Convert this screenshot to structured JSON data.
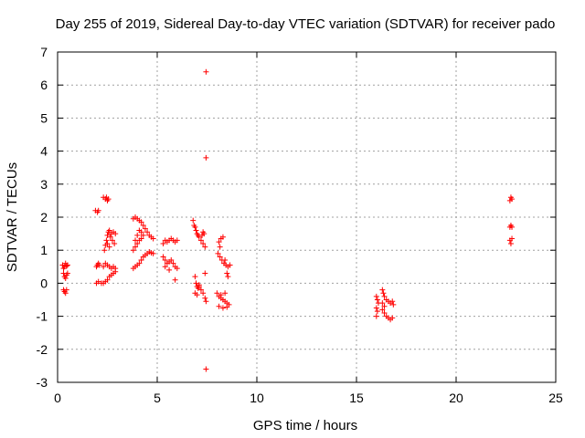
{
  "chart_data": {
    "type": "scatter",
    "title": "Day 255 of 2019, Sidereal Day-to-day VTEC variation (SDTVAR) for receiver pado",
    "xlabel": "GPS time / hours",
    "ylabel": "SDTVAR / TECUs",
    "xlim": [
      0,
      25
    ],
    "ylim": [
      -3,
      7
    ],
    "grid": true,
    "x_ticks": [
      0,
      5,
      10,
      15,
      20,
      25
    ],
    "x_tick_labels": [
      "0",
      "5",
      "10",
      "15",
      "20",
      "25"
    ],
    "y_ticks": [
      -3,
      -2,
      -1,
      0,
      1,
      2,
      3,
      4,
      5,
      6,
      7
    ],
    "y_tick_labels": [
      "-3",
      "-2",
      "-1",
      "0",
      "1",
      "2",
      "3",
      "4",
      "5",
      "6",
      "7"
    ],
    "marker": "+",
    "series_color": "#ff0000",
    "series": [
      {
        "name": "SDTVAR",
        "points": [
          [
            0.25,
            0.55
          ],
          [
            0.3,
            0.45
          ],
          [
            0.35,
            0.5
          ],
          [
            0.4,
            0.6
          ],
          [
            0.45,
            0.52
          ],
          [
            0.5,
            0.55
          ],
          [
            0.3,
            0.3
          ],
          [
            0.35,
            0.2
          ],
          [
            0.4,
            0.15
          ],
          [
            0.45,
            0.25
          ],
          [
            0.5,
            0.3
          ],
          [
            0.3,
            -0.2
          ],
          [
            0.35,
            -0.25
          ],
          [
            0.4,
            -0.3
          ],
          [
            0.45,
            -0.2
          ],
          [
            1.9,
            2.2
          ],
          [
            2.0,
            2.15
          ],
          [
            2.05,
            2.2
          ],
          [
            1.95,
            0.5
          ],
          [
            2.0,
            0.55
          ],
          [
            2.05,
            0.6
          ],
          [
            2.1,
            0.55
          ],
          [
            1.95,
            0.0
          ],
          [
            2.05,
            0.05
          ],
          [
            2.2,
            0.0
          ],
          [
            2.3,
            2.6
          ],
          [
            2.4,
            2.55
          ],
          [
            2.5,
            2.5
          ],
          [
            2.55,
            2.55
          ],
          [
            2.45,
            2.6
          ],
          [
            2.35,
            1.0
          ],
          [
            2.4,
            1.15
          ],
          [
            2.45,
            1.3
          ],
          [
            2.5,
            1.45
          ],
          [
            2.55,
            1.55
          ],
          [
            2.6,
            1.6
          ],
          [
            2.7,
            1.5
          ],
          [
            2.8,
            1.55
          ],
          [
            2.9,
            1.5
          ],
          [
            2.65,
            1.4
          ],
          [
            2.75,
            1.3
          ],
          [
            2.85,
            1.2
          ],
          [
            2.6,
            1.1
          ],
          [
            2.5,
            1.2
          ],
          [
            2.3,
            0.5
          ],
          [
            2.4,
            0.6
          ],
          [
            2.5,
            0.55
          ],
          [
            2.6,
            0.5
          ],
          [
            2.7,
            0.45
          ],
          [
            2.8,
            0.5
          ],
          [
            2.9,
            0.45
          ],
          [
            2.3,
            0.0
          ],
          [
            2.4,
            0.05
          ],
          [
            2.5,
            0.1
          ],
          [
            2.6,
            0.2
          ],
          [
            2.7,
            0.25
          ],
          [
            2.8,
            0.3
          ],
          [
            2.9,
            0.35
          ],
          [
            3.8,
            1.95
          ],
          [
            3.9,
            2.0
          ],
          [
            4.0,
            1.95
          ],
          [
            4.1,
            1.9
          ],
          [
            4.2,
            1.85
          ],
          [
            4.3,
            1.75
          ],
          [
            4.4,
            1.65
          ],
          [
            4.5,
            1.55
          ],
          [
            4.6,
            1.45
          ],
          [
            4.7,
            1.4
          ],
          [
            4.8,
            1.35
          ],
          [
            4.2,
            1.55
          ],
          [
            4.3,
            1.45
          ],
          [
            4.1,
            1.6
          ],
          [
            3.8,
            1.0
          ],
          [
            3.9,
            1.1
          ],
          [
            4.0,
            1.2
          ],
          [
            4.1,
            1.3
          ],
          [
            4.2,
            1.35
          ],
          [
            4.0,
            1.45
          ],
          [
            3.9,
            1.3
          ],
          [
            3.8,
            0.45
          ],
          [
            3.9,
            0.5
          ],
          [
            4.0,
            0.55
          ],
          [
            4.1,
            0.6
          ],
          [
            4.2,
            0.7
          ],
          [
            4.3,
            0.8
          ],
          [
            4.4,
            0.85
          ],
          [
            4.5,
            0.9
          ],
          [
            4.6,
            0.95
          ],
          [
            4.7,
            0.92
          ],
          [
            4.8,
            0.9
          ],
          [
            5.3,
            1.2
          ],
          [
            5.4,
            1.3
          ],
          [
            5.5,
            1.25
          ],
          [
            5.6,
            1.3
          ],
          [
            5.7,
            1.35
          ],
          [
            5.8,
            1.3
          ],
          [
            5.9,
            1.25
          ],
          [
            6.0,
            1.3
          ],
          [
            5.3,
            0.8
          ],
          [
            5.4,
            0.7
          ],
          [
            5.5,
            0.6
          ],
          [
            5.6,
            0.65
          ],
          [
            5.7,
            0.7
          ],
          [
            5.8,
            0.6
          ],
          [
            5.9,
            0.5
          ],
          [
            6.0,
            0.45
          ],
          [
            5.4,
            0.5
          ],
          [
            5.6,
            0.4
          ],
          [
            5.9,
            0.1
          ],
          [
            6.8,
            1.9
          ],
          [
            6.85,
            1.75
          ],
          [
            6.9,
            1.7
          ],
          [
            6.95,
            1.6
          ],
          [
            7.0,
            1.5
          ],
          [
            7.05,
            1.45
          ],
          [
            7.1,
            1.4
          ],
          [
            7.2,
            1.3
          ],
          [
            7.3,
            1.2
          ],
          [
            7.4,
            1.1
          ],
          [
            7.35,
            1.5
          ],
          [
            7.3,
            1.55
          ],
          [
            7.25,
            1.45
          ],
          [
            6.9,
            0.2
          ],
          [
            6.95,
            0.0
          ],
          [
            7.0,
            -0.1
          ],
          [
            7.05,
            -0.15
          ],
          [
            7.1,
            -0.1
          ],
          [
            7.2,
            -0.2
          ],
          [
            7.3,
            -0.3
          ],
          [
            7.4,
            -0.45
          ],
          [
            7.45,
            -0.55
          ],
          [
            6.9,
            -0.3
          ],
          [
            7.0,
            -0.35
          ],
          [
            7.1,
            -0.05
          ],
          [
            7.4,
            0.3
          ],
          [
            7.45,
            6.4
          ],
          [
            7.45,
            3.8
          ],
          [
            7.45,
            -2.6
          ],
          [
            8.1,
            1.25
          ],
          [
            8.2,
            1.35
          ],
          [
            8.3,
            1.4
          ],
          [
            8.15,
            1.1
          ],
          [
            8.05,
            0.9
          ],
          [
            8.15,
            0.8
          ],
          [
            8.25,
            0.7
          ],
          [
            8.35,
            0.6
          ],
          [
            8.45,
            0.55
          ],
          [
            8.55,
            0.5
          ],
          [
            8.65,
            0.55
          ],
          [
            8.4,
            0.7
          ],
          [
            8.5,
            0.3
          ],
          [
            8.55,
            0.2
          ],
          [
            8.0,
            -0.3
          ],
          [
            8.1,
            -0.4
          ],
          [
            8.2,
            -0.45
          ],
          [
            8.3,
            -0.5
          ],
          [
            8.4,
            -0.55
          ],
          [
            8.5,
            -0.6
          ],
          [
            8.6,
            -0.65
          ],
          [
            8.1,
            -0.7
          ],
          [
            8.3,
            -0.75
          ],
          [
            8.5,
            -0.72
          ],
          [
            8.2,
            -0.35
          ],
          [
            8.4,
            -0.3
          ],
          [
            16.0,
            -0.4
          ],
          [
            16.05,
            -0.5
          ],
          [
            16.1,
            -0.6
          ],
          [
            16.0,
            -0.75
          ],
          [
            16.05,
            -0.85
          ],
          [
            16.0,
            -1.0
          ],
          [
            16.3,
            -0.2
          ],
          [
            16.35,
            -0.3
          ],
          [
            16.4,
            -0.4
          ],
          [
            16.5,
            -0.5
          ],
          [
            16.6,
            -0.55
          ],
          [
            16.7,
            -0.6
          ],
          [
            16.8,
            -0.55
          ],
          [
            16.85,
            -0.65
          ],
          [
            16.3,
            -0.6
          ],
          [
            16.4,
            -0.7
          ],
          [
            16.3,
            -0.8
          ],
          [
            16.4,
            -0.9
          ],
          [
            16.5,
            -1.0
          ],
          [
            16.6,
            -1.05
          ],
          [
            16.7,
            -1.1
          ],
          [
            16.8,
            -1.05
          ],
          [
            22.7,
            2.5
          ],
          [
            22.75,
            2.6
          ],
          [
            22.8,
            2.55
          ],
          [
            22.7,
            1.7
          ],
          [
            22.75,
            1.75
          ],
          [
            22.8,
            1.7
          ],
          [
            22.7,
            1.3
          ],
          [
            22.75,
            1.2
          ],
          [
            22.8,
            1.35
          ]
        ]
      }
    ]
  }
}
